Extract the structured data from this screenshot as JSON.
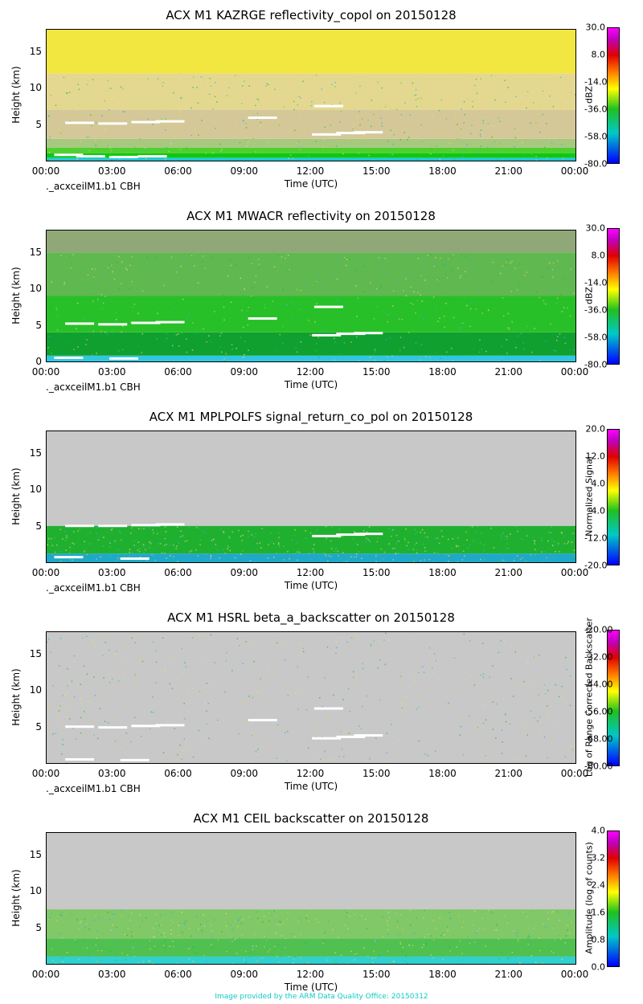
{
  "footer": "Image provided by the ARM Data Quality Office: 20150312",
  "chart_data": [
    {
      "type": "heatmap",
      "title": "ACX M1 KAZRGE reflectivity_copol on 20150128",
      "ylabel": "Height (km)",
      "xlabel": "Time (UTC)",
      "cbh_label": "._acxceilM1.b1 CBH",
      "x_ticks": [
        "00:00",
        "03:00",
        "06:00",
        "09:00",
        "12:00",
        "15:00",
        "18:00",
        "21:00",
        "00:00"
      ],
      "y_ticks": [
        "5",
        "10",
        "15"
      ],
      "ylim": [
        0,
        18
      ],
      "colorbar": {
        "label": "dBZ",
        "ticks": [
          "30.0",
          "8.0",
          "-14.0",
          "-36.0",
          "-58.0",
          "-80.0"
        ],
        "range": [
          -80,
          30
        ]
      },
      "background": [
        {
          "y0": 0,
          "y1": 0.4,
          "color": "#20c8d8"
        },
        {
          "y0": 0.4,
          "y1": 1.0,
          "color": "#10c810"
        },
        {
          "y0": 1.0,
          "y1": 1.8,
          "color": "#50d030"
        },
        {
          "y0": 1.8,
          "y1": 3.0,
          "color": "#a8c880"
        },
        {
          "y0": 3.0,
          "y1": 7.0,
          "color": "#d4c898"
        },
        {
          "y0": 7.0,
          "y1": 12.0,
          "color": "#e4d890"
        },
        {
          "y0": 12.0,
          "y1": 18.0,
          "color": "#f2e640"
        }
      ],
      "cbh_points": [
        [
          1.5,
          5.2
        ],
        [
          3.0,
          5.1
        ],
        [
          4.5,
          5.3
        ],
        [
          5.6,
          5.4
        ],
        [
          9.8,
          5.9
        ],
        [
          12.7,
          3.6
        ],
        [
          13.8,
          3.8
        ],
        [
          14.6,
          3.9
        ],
        [
          1.0,
          0.8
        ],
        [
          2.0,
          0.6
        ],
        [
          3.5,
          0.5
        ],
        [
          4.8,
          0.6
        ],
        [
          12.8,
          7.5
        ]
      ]
    },
    {
      "type": "heatmap",
      "title": "ACX M1 MWACR reflectivity on 20150128",
      "ylabel": "Height (km)",
      "xlabel": "Time (UTC)",
      "cbh_label": "._acxceilM1.b1 CBH",
      "x_ticks": [
        "00:00",
        "03:00",
        "06:00",
        "09:00",
        "12:00",
        "15:00",
        "18:00",
        "21:00",
        "00:00"
      ],
      "y_ticks": [
        "0",
        "5",
        "10",
        "15"
      ],
      "ylim": [
        0,
        18
      ],
      "colorbar": {
        "label": "dBZ",
        "ticks": [
          "30.0",
          "8.0",
          "-14.0",
          "-36.0",
          "-58.0",
          "-80.0"
        ],
        "range": [
          -80,
          30
        ]
      },
      "background": [
        {
          "y0": 0,
          "y1": 0.8,
          "color": "#30c8e0"
        },
        {
          "y0": 0.8,
          "y1": 4.0,
          "color": "#10a030"
        },
        {
          "y0": 4.0,
          "y1": 9.0,
          "color": "#28c028"
        },
        {
          "y0": 9.0,
          "y1": 15.0,
          "color": "#60b850"
        },
        {
          "y0": 15.0,
          "y1": 18.0,
          "color": "#90a878"
        }
      ],
      "cbh_points": [
        [
          1.5,
          5.2
        ],
        [
          3.0,
          5.1
        ],
        [
          4.5,
          5.3
        ],
        [
          5.6,
          5.4
        ],
        [
          9.8,
          5.9
        ],
        [
          12.7,
          3.6
        ],
        [
          13.8,
          3.8
        ],
        [
          14.6,
          3.9
        ],
        [
          1.0,
          0.5
        ],
        [
          3.5,
          0.4
        ],
        [
          12.8,
          7.5
        ]
      ]
    },
    {
      "type": "heatmap",
      "title": "ACX M1 MPLPOLFS signal_return_co_pol on 20150128",
      "ylabel": "Height (km)",
      "xlabel": "Time (UTC)",
      "cbh_label": "._acxceilM1.b1 CBH",
      "x_ticks": [
        "00:00",
        "03:00",
        "06:00",
        "09:00",
        "12:00",
        "15:00",
        "18:00",
        "21:00",
        "00:00"
      ],
      "y_ticks": [
        "5",
        "10",
        "15"
      ],
      "ylim": [
        0,
        18
      ],
      "colorbar": {
        "label": "Normalized Signal",
        "ticks": [
          "20.0",
          "12.0",
          "4.0",
          "-4.0",
          "-12.0",
          "-20.0"
        ],
        "range": [
          -20,
          20
        ]
      },
      "background": [
        {
          "y0": 0,
          "y1": 1.2,
          "color": "#20a8c8"
        },
        {
          "y0": 1.2,
          "y1": 5.0,
          "color": "#20b030"
        },
        {
          "y0": 5.0,
          "y1": 18.0,
          "color": "#c8c8c8"
        }
      ],
      "cbh_points": [
        [
          1.5,
          5.0
        ],
        [
          3.0,
          5.0
        ],
        [
          4.5,
          5.1
        ],
        [
          5.6,
          5.2
        ],
        [
          12.7,
          3.6
        ],
        [
          13.8,
          3.8
        ],
        [
          14.6,
          3.9
        ],
        [
          1.0,
          0.7
        ],
        [
          4.0,
          0.5
        ]
      ]
    },
    {
      "type": "heatmap",
      "title": "ACX M1 HSRL beta_a_backscatter on 20150128",
      "ylabel": "Height (km)",
      "xlabel": "Time (UTC)",
      "cbh_label": "._acxceilM1.b1 CBH",
      "x_ticks": [
        "00:00",
        "03:00",
        "06:00",
        "09:00",
        "12:00",
        "15:00",
        "18:00",
        "21:00",
        "00:00"
      ],
      "y_ticks": [
        "5",
        "10",
        "15"
      ],
      "ylim": [
        0,
        18
      ],
      "colorbar": {
        "label": "Log of Range Corrected Backscatter",
        "ticks": [
          "-20.00",
          "-32.00",
          "-44.00",
          "-56.00",
          "-68.00",
          "-80.00"
        ],
        "range": [
          -80,
          -20
        ]
      },
      "background": [
        {
          "y0": 0,
          "y1": 18.0,
          "color": "#c8c8c8"
        }
      ],
      "cbh_points": [
        [
          1.5,
          5.0
        ],
        [
          3.0,
          4.9
        ],
        [
          4.5,
          5.1
        ],
        [
          5.6,
          5.2
        ],
        [
          9.8,
          5.9
        ],
        [
          12.7,
          3.4
        ],
        [
          13.8,
          3.6
        ],
        [
          14.6,
          3.8
        ],
        [
          12.8,
          7.5
        ],
        [
          1.5,
          0.5
        ],
        [
          4.0,
          0.4
        ]
      ]
    },
    {
      "type": "heatmap",
      "title": "ACX M1 CEIL backscatter on 20150128",
      "ylabel": "Height (km)",
      "xlabel": "Time (UTC)",
      "cbh_label": "",
      "x_ticks": [
        "00:00",
        "03:00",
        "06:00",
        "09:00",
        "12:00",
        "15:00",
        "18:00",
        "21:00",
        "00:00"
      ],
      "y_ticks": [
        "5",
        "10",
        "15"
      ],
      "ylim": [
        0,
        18
      ],
      "colorbar": {
        "label": "Amplitude (log of counts)",
        "ticks": [
          "4.0",
          "3.2",
          "2.4",
          "1.6",
          "0.8",
          "0.0"
        ],
        "range": [
          0,
          4
        ]
      },
      "background": [
        {
          "y0": 0,
          "y1": 1.0,
          "color": "#30d0d0"
        },
        {
          "y0": 1.0,
          "y1": 3.5,
          "color": "#50c050"
        },
        {
          "y0": 3.5,
          "y1": 7.5,
          "color": "#80c868"
        },
        {
          "y0": 7.5,
          "y1": 18.0,
          "color": "#c8c8c8"
        }
      ],
      "cbh_points": []
    }
  ]
}
